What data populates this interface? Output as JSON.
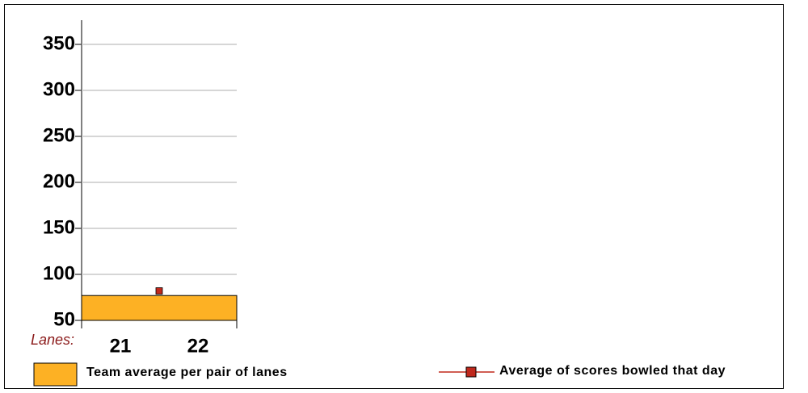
{
  "chart_data": {
    "type": "bar",
    "categories": [
      null
    ],
    "lane_label": "Lanes:",
    "lanes": [
      "21",
      "22"
    ],
    "series": [
      {
        "name": "Team average per pair of lanes",
        "type": "bar",
        "color": "#fdb124",
        "values": [
          77
        ]
      },
      {
        "name": "Average of scores bowled that day",
        "type": "line",
        "color": "#c0281c",
        "values": [
          82
        ]
      }
    ],
    "ylim": [
      50,
      350
    ],
    "yticks": [
      50,
      100,
      150,
      200,
      250,
      300,
      350
    ],
    "grid": true
  }
}
